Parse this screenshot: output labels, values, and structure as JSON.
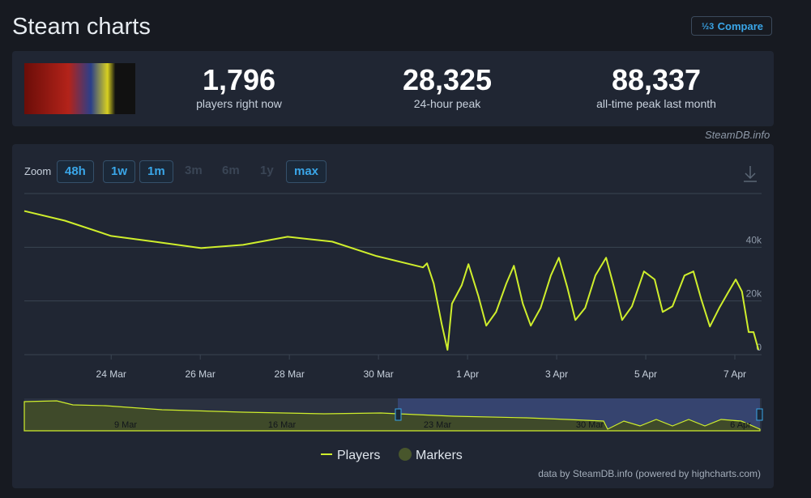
{
  "header": {
    "title": "Steam charts",
    "compare": "Compare"
  },
  "stats": [
    {
      "value": "1,796",
      "label": "players right now"
    },
    {
      "value": "28,325",
      "label": "24-hour peak"
    },
    {
      "value": "88,337",
      "label": "all-time peak last month"
    }
  ],
  "source": "SteamDB.info",
  "zoom": {
    "label": "Zoom",
    "options": [
      "48h",
      "1w",
      "1m",
      "3m",
      "6m",
      "1y",
      "max"
    ]
  },
  "chart_data": {
    "type": "line",
    "x": [
      22.05,
      22.96,
      24,
      24.96,
      26.02,
      26.96,
      27.96,
      28.96,
      29.96,
      31,
      31.09,
      31.24,
      31.42,
      31.55,
      31.65,
      31.87,
      32.02,
      32.24,
      32.42,
      32.64,
      32.87,
      33.04,
      33.24,
      33.42,
      33.64,
      33.87,
      34.05,
      34.24,
      34.42,
      34.64,
      34.87,
      35.11,
      35.29,
      35.47,
      35.69,
      35.96,
      36.2,
      36.38,
      36.6,
      36.87,
      37.07,
      37.25,
      37.44,
      37.65,
      37.84,
      38.02,
      38.16,
      38.31,
      38.42,
      38.53
    ],
    "series": [
      {
        "name": "Players",
        "color": "#cfee2c",
        "values": [
          53500,
          49900,
          44200,
          42100,
          39700,
          40900,
          43900,
          42100,
          36700,
          32500,
          34000,
          26500,
          11400,
          1800,
          19000,
          25900,
          33700,
          22000,
          10800,
          15900,
          26500,
          33100,
          19000,
          10800,
          17400,
          29500,
          36100,
          25000,
          12900,
          17400,
          29500,
          36100,
          25000,
          12900,
          18000,
          31000,
          28000,
          15900,
          18000,
          29500,
          31000,
          20400,
          10500,
          17400,
          22900,
          28000,
          23500,
          8400,
          8400,
          1800
        ]
      }
    ],
    "markers": {
      "name": "Markers",
      "color": "#48562c"
    },
    "xlim": [
      22.05,
      38.6
    ],
    "xticks": [
      {
        "value": 24,
        "label": "24 Mar"
      },
      {
        "value": 26,
        "label": "26 Mar"
      },
      {
        "value": 28,
        "label": "28 Mar"
      },
      {
        "value": 30,
        "label": "30 Mar"
      },
      {
        "value": 32,
        "label": "1 Apr"
      },
      {
        "value": 34,
        "label": "3 Apr"
      },
      {
        "value": 36,
        "label": "5 Apr"
      },
      {
        "value": 38,
        "label": "7 Apr"
      }
    ],
    "ylim": [
      0,
      60000
    ],
    "yticks": [
      0,
      {
        "value": 20000,
        "label": "20k"
      },
      {
        "value": 40000,
        "label": "40k"
      }
    ],
    "grid": true,
    "navigator_labels": [
      "9 Mar",
      "16 Mar",
      "23 Mar",
      "30 Mar",
      "6 Apr"
    ]
  },
  "credit": "data by SteamDB.info (powered by highcharts.com)"
}
